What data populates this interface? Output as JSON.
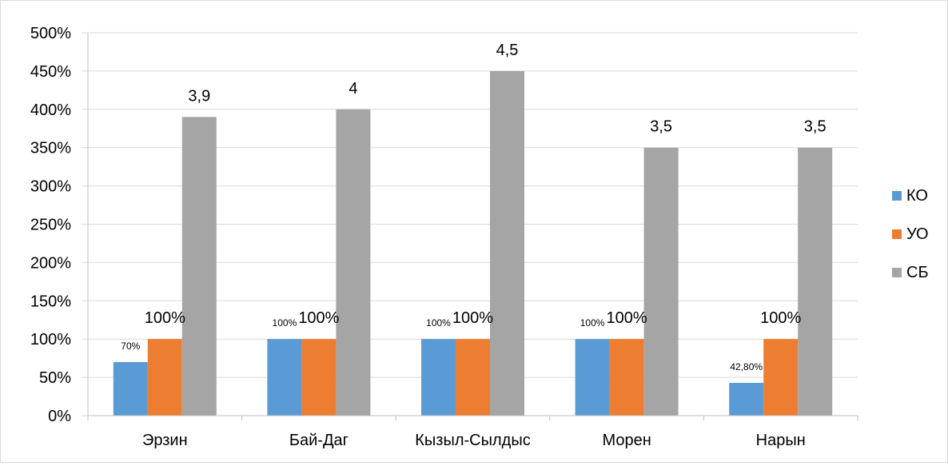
{
  "chart_data": {
    "type": "bar",
    "categories": [
      "Эрзин",
      "Бай-Даг",
      "Кызыл-Сылдыс",
      "Морен",
      "Нарын"
    ],
    "series": [
      {
        "name": "КО",
        "color": "#5b9bd5",
        "values": [
          70,
          100,
          100,
          100,
          42.8
        ],
        "labels": [
          "70%",
          "100%",
          "100%",
          "100%",
          "42,80%"
        ]
      },
      {
        "name": "УО",
        "color": "#ed7d31",
        "values": [
          100,
          100,
          100,
          100,
          100
        ],
        "labels": [
          "100%",
          "100%",
          "100%",
          "100%",
          "100%"
        ]
      },
      {
        "name": "СБ",
        "color": "#a5a5a5",
        "values": [
          390,
          400,
          450,
          350,
          350
        ],
        "labels": [
          "3,9",
          "4",
          "4,5",
          "3,5",
          "3,5"
        ]
      }
    ],
    "ylim": [
      0,
      500
    ],
    "yticks": [
      "0%",
      "50%",
      "100%",
      "150%",
      "200%",
      "250%",
      "300%",
      "350%",
      "400%",
      "450%",
      "500%"
    ],
    "grid": true,
    "legend_position": "right"
  }
}
